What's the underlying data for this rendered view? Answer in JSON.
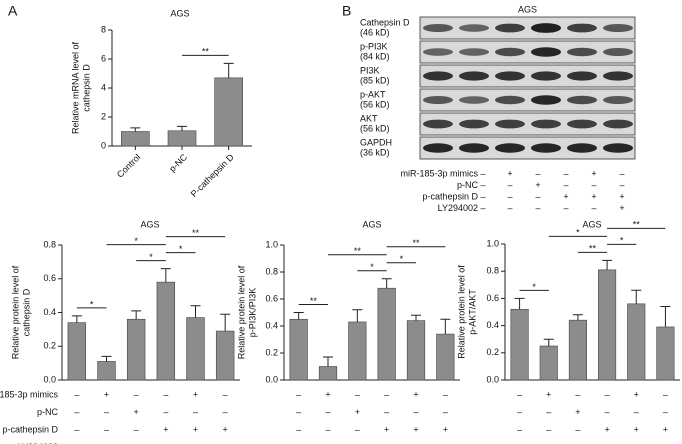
{
  "panels": {
    "a": "A",
    "b": "B"
  },
  "blot": {
    "title": "AGS",
    "proteins": [
      {
        "name": "Cathepsin D",
        "size": "(46 kD)"
      },
      {
        "name": "p-PI3K",
        "size": "(84 kD)"
      },
      {
        "name": "PI3K",
        "size": "(85 kD)"
      },
      {
        "name": "p-AKT",
        "size": "(56 kD)"
      },
      {
        "name": "AKT",
        "size": "(56 kD)"
      },
      {
        "name": "GAPDH",
        "size": "(36 kD)"
      }
    ]
  },
  "treatments": {
    "rows": [
      {
        "name": "miR-185-3p mimics",
        "signs": [
          "–",
          "+",
          "–",
          "–",
          "+",
          "–"
        ]
      },
      {
        "name": "p-NC",
        "signs": [
          "–",
          "–",
          "+",
          "–",
          "–",
          "–"
        ]
      },
      {
        "name": "p-cathepsin D",
        "signs": [
          "–",
          "–",
          "–",
          "+",
          "+",
          "+"
        ]
      },
      {
        "name": "LY294002",
        "signs": [
          "–",
          "–",
          "–",
          "–",
          "–",
          "+"
        ]
      }
    ]
  },
  "chart_data": [
    {
      "type": "bar",
      "title": "AGS",
      "ylabel": [
        "Relative mRNA level of",
        "cathepsin D"
      ],
      "categories": [
        "Control",
        "p-NC",
        "P-cathepsin D"
      ],
      "values": [
        1.0,
        1.05,
        4.7
      ],
      "errors": [
        0.25,
        0.3,
        1.0
      ],
      "color": "#8c8c8c",
      "ylim": [
        0,
        8
      ],
      "yticks": [
        0,
        2,
        4,
        6,
        8
      ],
      "significance": [
        {
          "from": 1,
          "to": 2,
          "label": "**"
        }
      ]
    },
    {
      "type": "bar",
      "title": "AGS",
      "ylabel": [
        "Relative protein level of",
        "cathepsin D"
      ],
      "categories": [
        null,
        null,
        null,
        null,
        null,
        null
      ],
      "values": [
        0.34,
        0.11,
        0.36,
        0.58,
        0.37,
        0.29
      ],
      "errors": [
        0.04,
        0.03,
        0.05,
        0.08,
        0.07,
        0.1
      ],
      "color": "#8c8c8c",
      "ylim": [
        0,
        0.8
      ],
      "yticks": [
        {
          "value": 0,
          "label": "0.0"
        },
        {
          "value": 0.2,
          "label": "0.2"
        },
        {
          "value": 0.4,
          "label": "0.4"
        },
        {
          "value": 0.6,
          "label": "0.6"
        },
        {
          "value": 0.8,
          "label": "0.8"
        }
      ],
      "significance": [
        {
          "from": 0,
          "to": 1,
          "label": "*"
        },
        {
          "from": 2,
          "to": 3,
          "label": "*"
        },
        {
          "from": 3,
          "to": 4,
          "label": "*"
        },
        {
          "from": 1,
          "to": 3,
          "label": "*"
        },
        {
          "from": 3,
          "to": 5,
          "label": "**"
        }
      ]
    },
    {
      "type": "bar",
      "title": "AGS",
      "ylabel": [
        "Relative protein level of",
        "p-PI3K/PI3K"
      ],
      "categories": [
        null,
        null,
        null,
        null,
        null,
        null
      ],
      "values": [
        0.45,
        0.1,
        0.43,
        0.68,
        0.44,
        0.34
      ],
      "errors": [
        0.05,
        0.07,
        0.09,
        0.07,
        0.04,
        0.11
      ],
      "color": "#8c8c8c",
      "ylim": [
        0,
        1.0
      ],
      "yticks": [
        {
          "value": 0,
          "label": "0.0"
        },
        {
          "value": 0.2,
          "label": "0.2"
        },
        {
          "value": 0.4,
          "label": "0.4"
        },
        {
          "value": 0.6,
          "label": "0.6"
        },
        {
          "value": 0.8,
          "label": "0.8"
        },
        {
          "value": 1.0,
          "label": "1.0"
        }
      ],
      "significance": [
        {
          "from": 0,
          "to": 1,
          "label": "**"
        },
        {
          "from": 2,
          "to": 3,
          "label": "*"
        },
        {
          "from": 3,
          "to": 4,
          "label": "*"
        },
        {
          "from": 1,
          "to": 3,
          "label": "**"
        },
        {
          "from": 3,
          "to": 5,
          "label": "**"
        }
      ]
    },
    {
      "type": "bar",
      "title": "AGS",
      "ylabel": [
        "Relative protein level of",
        "p-AKT/AKT"
      ],
      "categories": [
        null,
        null,
        null,
        null,
        null,
        null
      ],
      "values": [
        0.52,
        0.25,
        0.44,
        0.81,
        0.56,
        0.39
      ],
      "errors": [
        0.08,
        0.05,
        0.04,
        0.07,
        0.1,
        0.15
      ],
      "color": "#8c8c8c",
      "ylim": [
        0,
        1.0
      ],
      "yticks": [
        {
          "value": 0,
          "label": "0.0"
        },
        {
          "value": 0.2,
          "label": "0.2"
        },
        {
          "value": 0.4,
          "label": "0.4"
        },
        {
          "value": 0.6,
          "label": "0.6"
        },
        {
          "value": 0.8,
          "label": "0.8"
        },
        {
          "value": 1.0,
          "label": "1.0"
        }
      ],
      "significance": [
        {
          "from": 0,
          "to": 1,
          "label": "*"
        },
        {
          "from": 2,
          "to": 3,
          "label": "**"
        },
        {
          "from": 3,
          "to": 4,
          "label": "*"
        },
        {
          "from": 1,
          "to": 3,
          "label": "*"
        },
        {
          "from": 3,
          "to": 5,
          "label": "**"
        }
      ]
    }
  ]
}
